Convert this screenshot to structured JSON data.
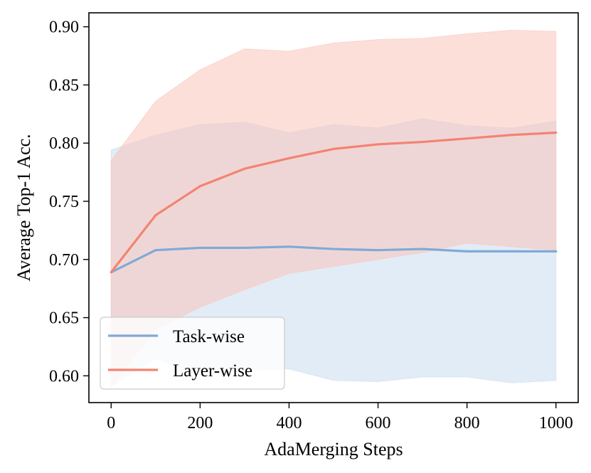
{
  "chart_data": {
    "type": "line",
    "title": "",
    "xlabel": "AdaMerging Steps",
    "ylabel": "Average Top-1 Acc.",
    "xlim": [
      -50,
      1050
    ],
    "ylim": [
      0.577,
      0.912
    ],
    "xticks": [
      0,
      200,
      400,
      600,
      800,
      1000
    ],
    "xtick_labels": [
      "0",
      "200",
      "400",
      "600",
      "800",
      "1000"
    ],
    "yticks": [
      0.6,
      0.65,
      0.7,
      0.75,
      0.8,
      0.85,
      0.9
    ],
    "ytick_labels": [
      "0.60",
      "0.65",
      "0.70",
      "0.75",
      "0.80",
      "0.85",
      "0.90"
    ],
    "grid": false,
    "legend_position": "lower-left",
    "x": [
      0,
      100,
      200,
      300,
      400,
      500,
      600,
      700,
      800,
      900,
      1000
    ],
    "series": [
      {
        "name": "Task-wise",
        "color": "#7faad5",
        "band_color": "#c9dcee",
        "values": [
          0.689,
          0.708,
          0.71,
          0.71,
          0.711,
          0.709,
          0.708,
          0.709,
          0.707,
          0.707,
          0.707
        ],
        "band_upper": [
          0.794,
          0.807,
          0.816,
          0.818,
          0.809,
          0.816,
          0.813,
          0.821,
          0.815,
          0.813,
          0.819
        ],
        "band_lower": [
          0.591,
          0.615,
          0.601,
          0.605,
          0.606,
          0.596,
          0.595,
          0.599,
          0.599,
          0.594,
          0.596
        ]
      },
      {
        "name": "Layer-wise",
        "color": "#f48372",
        "band_color": "#fcc4bb",
        "values": [
          0.689,
          0.738,
          0.763,
          0.778,
          0.787,
          0.795,
          0.799,
          0.801,
          0.804,
          0.807,
          0.809
        ],
        "band_upper": [
          0.785,
          0.836,
          0.863,
          0.881,
          0.879,
          0.886,
          0.889,
          0.89,
          0.894,
          0.897,
          0.896
        ],
        "band_lower": [
          0.591,
          0.64,
          0.659,
          0.674,
          0.688,
          0.694,
          0.7,
          0.706,
          0.714,
          0.711,
          0.708
        ]
      }
    ]
  }
}
